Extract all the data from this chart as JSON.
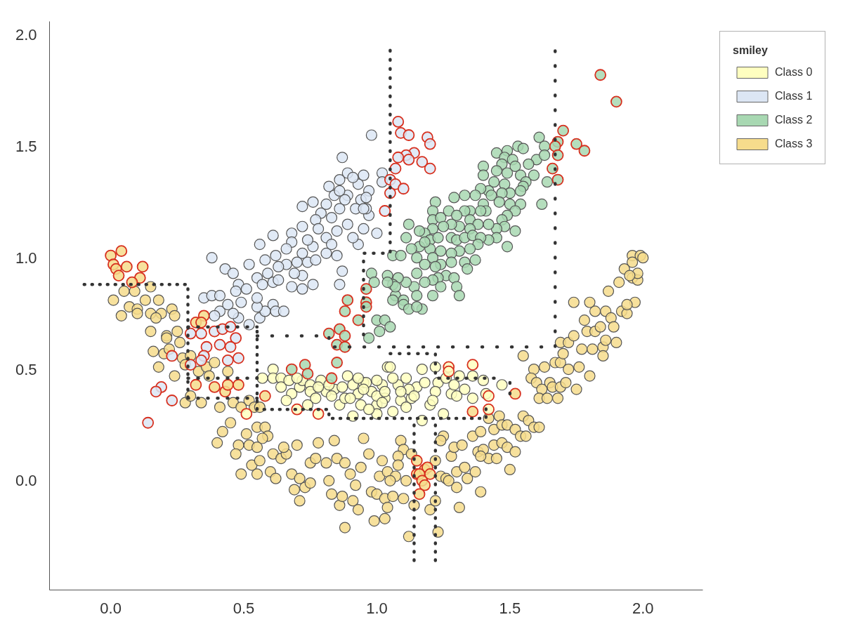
{
  "chart_data": {
    "type": "scatter",
    "xlim": [
      -0.23,
      2.225
    ],
    "ylim": [
      -0.49,
      2.06
    ],
    "xticks": [
      {
        "value": 0,
        "label": "0.0"
      },
      0.5,
      {
        "value": 1,
        "label": "1.0"
      },
      1.5,
      {
        "value": 2,
        "label": "2.0"
      }
    ],
    "yticks": [
      {
        "value": 0,
        "label": "0.0"
      },
      0.5,
      {
        "value": 1,
        "label": "1.0"
      },
      1.5,
      {
        "value": 2,
        "label": "2.0"
      }
    ],
    "legend": "top right",
    "legend_title": "smiley",
    "marker": "circle",
    "series": [
      {
        "name": "Class 0",
        "color": "#ffffc0",
        "x": [
          0.61,
          0.61,
          0.57,
          0.64,
          0.64,
          0.67,
          0.68,
          0.66,
          0.71,
          0.72,
          0.75,
          0.75,
          0.79,
          0.81,
          0.84,
          0.86,
          0.89,
          0.91,
          0.93,
          0.94,
          0.91,
          0.88,
          0.95,
          0.98,
          1.0,
          1.02,
          1.04,
          1.03,
          1.0,
          0.77,
          0.74,
          1.05,
          0.96,
          1.0,
          0.97,
          1.03,
          1.06,
          1.08,
          1.11,
          1.13,
          1.17,
          1.17,
          1.22,
          1.15,
          1.2,
          1.25,
          1.23,
          1.28,
          1.31,
          1.33,
          1.36,
          1.36,
          1.4,
          1.41,
          1.47,
          1.12,
          1.09,
          0.82,
          0.87,
          0.95,
          1.0,
          1.06,
          1.09,
          1.14,
          1.18,
          1.22,
          1.26,
          1.3,
          0.78,
          0.83,
          0.9,
          1.02,
          1.11,
          1.21,
          1.29,
          0.7,
          0.93
        ],
        "values": [
          0.5,
          0.46,
          0.46,
          0.46,
          0.42,
          0.45,
          0.39,
          0.36,
          0.42,
          0.45,
          0.43,
          0.4,
          0.45,
          0.4,
          0.41,
          0.34,
          0.47,
          0.43,
          0.39,
          0.34,
          0.29,
          0.37,
          0.44,
          0.4,
          0.34,
          0.43,
          0.51,
          0.37,
          0.3,
          0.37,
          0.34,
          0.51,
          0.44,
          0.38,
          0.32,
          0.4,
          0.31,
          0.43,
          0.46,
          0.37,
          0.27,
          0.5,
          0.51,
          0.42,
          0.34,
          0.3,
          0.44,
          0.39,
          0.47,
          0.41,
          0.47,
          0.37,
          0.45,
          0.39,
          0.43,
          0.41,
          0.36,
          0.43,
          0.42,
          0.41,
          0.45,
          0.46,
          0.4,
          0.38,
          0.44,
          0.4,
          0.46,
          0.38,
          0.42,
          0.38,
          0.37,
          0.35,
          0.33,
          0.36,
          0.43,
          0.46,
          0.46
        ]
      },
      {
        "name": "Class 1",
        "color": "#dce6f4",
        "x": [
          0.98,
          0.87,
          0.89,
          0.95,
          0.82,
          0.72,
          0.76,
          0.79,
          0.86,
          0.94,
          0.97,
          1.0,
          0.93,
          0.87,
          0.86,
          0.76,
          0.72,
          0.68,
          0.61,
          0.56,
          0.62,
          0.66,
          0.52,
          0.43,
          0.46,
          0.38,
          0.48,
          0.55,
          0.59,
          0.63,
          0.72,
          0.76,
          0.81,
          0.85,
          0.89,
          0.92,
          0.89,
          0.84,
          0.81,
          0.77,
          0.72,
          0.68,
          0.74,
          0.81,
          0.85,
          0.91,
          0.95,
          0.96,
          0.93,
          0.91,
          0.86,
          0.35,
          0.38,
          0.41,
          0.41,
          0.39,
          0.44,
          0.47,
          0.49,
          0.48,
          0.52,
          0.56,
          0.58,
          0.55,
          0.61,
          0.62,
          0.65,
          0.57,
          0.61,
          0.68,
          0.72,
          0.51,
          0.55,
          0.46,
          0.58,
          0.66,
          0.74,
          0.69,
          0.63,
          0.78,
          0.83,
          0.88,
          0.86,
          1.02,
          1.02,
          0.97,
          0.96,
          0.95,
          0.83,
          0.77,
          0.7
        ],
        "values": [
          1.55,
          1.45,
          1.38,
          1.37,
          1.32,
          1.23,
          1.25,
          1.2,
          1.22,
          1.26,
          1.19,
          1.11,
          1.06,
          0.94,
          0.88,
          0.88,
          0.92,
          1.11,
          1.1,
          1.06,
          1.01,
          0.97,
          0.97,
          0.95,
          0.93,
          1.0,
          0.88,
          0.91,
          0.93,
          0.96,
          1.02,
          1.05,
          1.09,
          1.12,
          1.15,
          1.22,
          1.28,
          1.28,
          1.24,
          1.17,
          1.14,
          1.07,
          1.08,
          1.02,
          1.01,
          1.09,
          1.13,
          1.22,
          1.33,
          1.36,
          1.3,
          0.82,
          0.83,
          0.83,
          0.76,
          0.74,
          0.79,
          0.85,
          0.8,
          0.73,
          0.7,
          0.73,
          0.76,
          0.78,
          0.79,
          0.76,
          0.76,
          0.88,
          0.89,
          0.87,
          0.86,
          0.86,
          0.82,
          0.75,
          0.99,
          1.04,
          0.98,
          0.93,
          0.9,
          1.13,
          1.18,
          1.26,
          1.35,
          1.38,
          1.34,
          1.3,
          1.27,
          1.22,
          1.06,
          0.99,
          0.98
        ]
      },
      {
        "name": "Class 2",
        "color": "#a8d8b2",
        "x": [
          1.45,
          1.49,
          1.53,
          1.55,
          1.61,
          1.63,
          1.6,
          1.63,
          1.57,
          1.59,
          1.64,
          1.62,
          1.48,
          1.51,
          1.52,
          1.47,
          1.49,
          1.54,
          1.56,
          1.55,
          1.4,
          1.4,
          1.45,
          1.44,
          1.48,
          1.5,
          1.54,
          1.47,
          1.42,
          1.39,
          1.37,
          1.4,
          1.43,
          1.46,
          1.5,
          1.54,
          1.52,
          1.49,
          1.47,
          1.52,
          1.48,
          1.45,
          1.45,
          1.49,
          1.42,
          1.41,
          1.39,
          1.35,
          1.33,
          1.29,
          1.33,
          1.22,
          1.21,
          1.21,
          1.24,
          1.27,
          1.3,
          1.35,
          1.38,
          1.42,
          1.35,
          1.31,
          1.28,
          1.25,
          1.21,
          1.18,
          1.2,
          1.23,
          1.28,
          1.3,
          1.33,
          1.36,
          1.39,
          1.38,
          1.35,
          1.31,
          1.28,
          1.24,
          1.2,
          1.16,
          1.13,
          1.11,
          1.12,
          1.16,
          1.18,
          1.21,
          1.24,
          1.28,
          1.33,
          1.37,
          1.15,
          1.18,
          1.22,
          1.26,
          1.29,
          1.3,
          1.31,
          1.23,
          1.21,
          1.18,
          1.15,
          1.14,
          1.11,
          1.08,
          1.04,
          1.06,
          1.07,
          1.1,
          1.06,
          1.09,
          0.98,
          0.99,
          1.07,
          1.06,
          1.1,
          1.12,
          1.17,
          1.15,
          1.0,
          1.03,
          1.05,
          1.01,
          0.97,
          1.34,
          1.15,
          1.21,
          1.24,
          1.04
        ],
        "values": [
          1.47,
          1.48,
          1.5,
          1.49,
          1.54,
          1.5,
          1.44,
          1.46,
          1.42,
          1.37,
          1.34,
          1.24,
          1.45,
          1.44,
          1.41,
          1.42,
          1.38,
          1.37,
          1.34,
          1.32,
          1.41,
          1.37,
          1.39,
          1.34,
          1.33,
          1.29,
          1.3,
          1.29,
          1.3,
          1.31,
          1.28,
          1.24,
          1.28,
          1.25,
          1.24,
          1.24,
          1.21,
          1.19,
          1.17,
          1.12,
          1.14,
          1.13,
          1.09,
          1.05,
          1.08,
          1.21,
          1.21,
          1.21,
          1.21,
          1.27,
          1.28,
          1.25,
          1.21,
          1.17,
          1.18,
          1.21,
          1.19,
          1.17,
          1.15,
          1.15,
          1.13,
          1.14,
          1.15,
          1.14,
          1.13,
          1.11,
          1.08,
          1.09,
          1.09,
          1.08,
          1.09,
          1.1,
          1.09,
          1.06,
          1.04,
          1.03,
          1.02,
          1.03,
          1.04,
          1.05,
          1.04,
          1.09,
          1.15,
          1.12,
          1.07,
          1.0,
          0.97,
          0.98,
          0.98,
          0.99,
          1.0,
          0.97,
          0.96,
          0.92,
          0.91,
          0.87,
          0.83,
          0.91,
          0.9,
          0.89,
          0.93,
          0.87,
          0.89,
          0.91,
          0.92,
          0.88,
          0.83,
          0.81,
          1.01,
          1.01,
          0.93,
          0.89,
          0.87,
          0.81,
          0.79,
          0.77,
          0.77,
          0.78,
          0.72,
          0.72,
          0.69,
          0.67,
          0.64,
          0.95,
          0.83,
          0.83,
          0.87,
          0.89
        ]
      },
      {
        "name": "Class 3",
        "color": "#f6dc8c",
        "x": [
          0.01,
          0.04,
          0.05,
          0.09,
          0.07,
          0.1,
          0.1,
          0.13,
          0.15,
          0.18,
          0.15,
          0.19,
          0.17,
          0.23,
          0.24,
          0.15,
          0.21,
          0.21,
          0.25,
          0.26,
          0.16,
          0.2,
          0.22,
          0.18,
          0.24,
          0.27,
          0.28,
          0.3,
          0.33,
          0.36,
          0.37,
          0.39,
          0.44,
          0.28,
          0.3,
          0.34,
          0.41,
          0.46,
          0.52,
          0.54,
          0.49,
          0.56,
          0.45,
          0.42,
          0.4,
          0.51,
          0.55,
          0.58,
          0.59,
          0.57,
          0.48,
          0.47,
          0.52,
          0.55,
          0.53,
          0.56,
          0.49,
          0.55,
          0.6,
          0.62,
          0.61,
          0.64,
          0.66,
          0.65,
          0.7,
          0.68,
          0.71,
          0.69,
          0.73,
          0.71,
          0.75,
          0.75,
          0.77,
          0.81,
          0.78,
          0.84,
          0.85,
          0.88,
          0.82,
          0.83,
          0.86,
          0.88,
          0.87,
          0.9,
          0.92,
          0.91,
          0.93,
          0.94,
          0.95,
          0.97,
          1.02,
          1.01,
          0.98,
          1.0,
          0.99,
          1.03,
          1.03,
          1.04,
          1.07,
          1.05,
          1.04,
          1.06,
          1.1,
          1.09,
          1.1,
          1.08,
          1.08,
          1.13,
          1.11,
          1.14,
          1.12,
          1.2,
          1.22,
          1.23,
          1.25,
          1.24,
          1.22,
          1.24,
          1.26,
          1.27,
          1.3,
          1.31,
          1.28,
          1.29,
          1.32,
          1.3,
          1.33,
          1.34,
          1.37,
          1.39,
          1.36,
          1.38,
          1.4,
          1.42,
          1.39,
          1.44,
          1.45,
          1.47,
          1.49,
          1.52,
          1.5,
          1.39,
          1.44,
          1.46,
          1.47,
          1.49,
          1.52,
          1.54,
          1.56,
          1.55,
          1.57,
          1.59,
          1.61,
          1.42,
          1.55,
          1.59,
          1.58,
          1.6,
          1.62,
          1.61,
          1.64,
          1.68,
          1.63,
          1.65,
          1.66,
          1.69,
          1.71,
          1.75,
          1.67,
          1.69,
          1.7,
          1.72,
          1.76,
          1.8,
          1.69,
          1.72,
          1.74,
          1.78,
          1.77,
          1.79,
          1.81,
          1.82,
          1.84,
          1.85,
          1.85,
          1.86,
          1.9,
          1.82,
          1.86,
          1.88,
          1.89,
          1.74,
          1.8,
          1.87,
          1.91,
          1.92,
          1.94,
          1.97,
          1.94,
          1.96,
          1.98,
          1.96,
          1.99,
          2.0,
          1.96,
          1.93,
          1.98,
          1.95
        ],
        "values": [
          0.81,
          0.74,
          0.85,
          0.85,
          0.78,
          0.77,
          0.75,
          0.81,
          0.87,
          0.81,
          0.75,
          0.75,
          0.73,
          0.77,
          0.74,
          0.67,
          0.65,
          0.64,
          0.67,
          0.62,
          0.58,
          0.57,
          0.59,
          0.51,
          0.47,
          0.55,
          0.52,
          0.56,
          0.49,
          0.51,
          0.47,
          0.53,
          0.49,
          0.35,
          0.38,
          0.35,
          0.33,
          0.35,
          0.36,
          0.33,
          0.33,
          0.33,
          0.26,
          0.22,
          0.17,
          0.21,
          0.24,
          0.24,
          0.2,
          0.19,
          0.16,
          0.12,
          0.16,
          0.15,
          0.07,
          0.09,
          0.03,
          0.03,
          0.04,
          0.01,
          0.12,
          0.1,
          0.12,
          0.15,
          0.16,
          0.03,
          0.01,
          -0.04,
          -0.03,
          -0.09,
          -0.01,
          0.08,
          0.1,
          0.08,
          0.17,
          0.18,
          0.1,
          0.08,
          0.0,
          -0.06,
          -0.11,
          -0.21,
          -0.07,
          0.03,
          -0.02,
          -0.09,
          -0.13,
          0.06,
          0.19,
          0.12,
          0.09,
          0.02,
          -0.05,
          -0.06,
          -0.18,
          -0.17,
          -0.08,
          0.04,
          0.02,
          0.0,
          -0.12,
          -0.07,
          -0.08,
          0.18,
          0.14,
          0.11,
          0.07,
          0.12,
          0.0,
          -0.11,
          -0.25,
          -0.13,
          -0.09,
          -0.23,
          0.2,
          0.18,
          0.09,
          0.02,
          0.01,
          0.0,
          -0.03,
          -0.12,
          0.11,
          0.15,
          0.16,
          0.04,
          0.06,
          0.01,
          0.04,
          -0.05,
          0.2,
          0.13,
          0.14,
          0.1,
          0.11,
          0.16,
          0.1,
          0.17,
          0.15,
          0.13,
          0.05,
          0.22,
          0.23,
          0.29,
          0.25,
          0.25,
          0.23,
          0.2,
          0.2,
          0.29,
          0.27,
          0.24,
          0.24,
          0.28,
          0.56,
          0.5,
          0.46,
          0.44,
          0.41,
          0.37,
          0.37,
          0.37,
          0.51,
          0.44,
          0.42,
          0.42,
          0.44,
          0.41,
          0.53,
          0.53,
          0.57,
          0.5,
          0.51,
          0.47,
          0.62,
          0.62,
          0.65,
          0.72,
          0.59,
          0.67,
          0.59,
          0.67,
          0.69,
          0.6,
          0.56,
          0.63,
          0.62,
          0.76,
          0.76,
          0.73,
          0.69,
          0.8,
          0.8,
          0.85,
          0.89,
          0.76,
          0.75,
          0.8,
          0.79,
          0.91,
          0.9,
          1.01,
          1.01,
          1.0,
          0.98,
          0.95,
          0.93,
          0.92
        ]
      },
      {
        "color": "#d7301f",
        "x": [
          1.08,
          1.09,
          1.12,
          1.19,
          1.2,
          1.14,
          1.11,
          1.08,
          1.12,
          1.17,
          1.2,
          1.07,
          1.05,
          1.07,
          1.1,
          1.05,
          1.03,
          0.3,
          0.34,
          0.39,
          0.42,
          0.45,
          0.47,
          0.36,
          0.41,
          0.45,
          0.35,
          0.34,
          0.44,
          0.48,
          0.23,
          0.3,
          0.19,
          0.17,
          0.23,
          0.14,
          1.84,
          1.9,
          1.7,
          1.68,
          1.67,
          1.75,
          1.78,
          1.68,
          1.66,
          1.68,
          0.96,
          0.96,
          0.89,
          0.88,
          0.93,
          0.96,
          0.82,
          0.86,
          0.88,
          0.85,
          0.88,
          0.85,
          0.83,
          0.68,
          0.73,
          0.74,
          0.0,
          0.04,
          0.01,
          0.02,
          0.06,
          0.12,
          0.03,
          0.11,
          0.08,
          0.35,
          0.32,
          0.34,
          0.32,
          0.39,
          0.43,
          0.44,
          0.48,
          0.58,
          1.15,
          1.15,
          1.18,
          1.19,
          1.2,
          1.16,
          1.17,
          1.18,
          1.16,
          1.52,
          1.36,
          0.51,
          0.7,
          0.78,
          1.36,
          1.27,
          1.27,
          1.42,
          1.42
        ],
        "values": [
          1.61,
          1.56,
          1.55,
          1.54,
          1.51,
          1.47,
          1.46,
          1.45,
          1.44,
          1.43,
          1.4,
          1.4,
          1.35,
          1.33,
          1.31,
          1.29,
          1.21,
          0.66,
          0.66,
          0.67,
          0.68,
          0.69,
          0.64,
          0.6,
          0.61,
          0.6,
          0.56,
          0.54,
          0.54,
          0.55,
          0.56,
          0.52,
          0.42,
          0.4,
          0.36,
          0.26,
          1.82,
          1.7,
          1.57,
          1.52,
          1.5,
          1.51,
          1.48,
          1.46,
          1.4,
          1.35,
          0.86,
          0.8,
          0.81,
          0.76,
          0.72,
          0.78,
          0.66,
          0.68,
          0.65,
          0.61,
          0.6,
          0.53,
          0.46,
          0.5,
          0.52,
          0.48,
          1.01,
          1.03,
          0.97,
          0.95,
          0.96,
          0.96,
          0.92,
          0.91,
          0.89,
          0.74,
          0.71,
          0.71,
          0.43,
          0.42,
          0.4,
          0.43,
          0.43,
          0.38,
          0.09,
          0.03,
          0.05,
          0.06,
          0.03,
          0.03,
          0.0,
          -0.02,
          -0.06,
          0.39,
          0.31,
          0.3,
          0.32,
          0.3,
          0.52,
          0.51,
          0.49,
          0.38,
          0.32
        ],
        "colors": [
          "#dce6f4",
          "#dce6f4",
          "#dce6f4",
          "#dce6f4",
          "#dce6f4",
          "#dce6f4",
          "#dce6f4",
          "#dce6f4",
          "#dce6f4",
          "#dce6f4",
          "#dce6f4",
          "#dce6f4",
          "#dce6f4",
          "#dce6f4",
          "#dce6f4",
          "#dce6f4",
          "#dce6f4",
          "#dce6f4",
          "#dce6f4",
          "#dce6f4",
          "#dce6f4",
          "#dce6f4",
          "#dce6f4",
          "#dce6f4",
          "#dce6f4",
          "#dce6f4",
          "#dce6f4",
          "#dce6f4",
          "#dce6f4",
          "#dce6f4",
          "#dce6f4",
          "#dce6f4",
          "#dce6f4",
          "#dce6f4",
          "#dce6f4",
          "#dce6f4",
          "#a8d8b2",
          "#a8d8b2",
          "#a8d8b2",
          "#a8d8b2",
          "#a8d8b2",
          "#a8d8b2",
          "#a8d8b2",
          "#a8d8b2",
          "#a8d8b2",
          "#a8d8b2",
          "#a8d8b2",
          "#a8d8b2",
          "#a8d8b2",
          "#a8d8b2",
          "#a8d8b2",
          "#a8d8b2",
          "#a8d8b2",
          "#a8d8b2",
          "#a8d8b2",
          "#a8d8b2",
          "#a8d8b2",
          "#a8d8b2",
          "#a8d8b2",
          "#a8d8b2",
          "#a8d8b2",
          "#a8d8b2",
          "#f6dc8c",
          "#f6dc8c",
          "#f6dc8c",
          "#f6dc8c",
          "#f6dc8c",
          "#f6dc8c",
          "#f6dc8c",
          "#f6dc8c",
          "#f6dc8c",
          "#f6dc8c",
          "#f6dc8c",
          "#f6dc8c",
          "#f6dc8c",
          "#f6dc8c",
          "#f6dc8c",
          "#f6dc8c",
          "#f6dc8c",
          "#f6dc8c",
          "#f6dc8c",
          "#f6dc8c",
          "#f6dc8c",
          "#f6dc8c",
          "#f6dc8c",
          "#f6dc8c",
          "#f6dc8c",
          "#f6dc8c",
          "#f6dc8c",
          "#f6dc8c",
          "#f6dc8c",
          "#ffffc0",
          "#ffffc0",
          "#ffffc0",
          "#ffffc0",
          "#ffffc0",
          "#ffffc0",
          "#ffffc0",
          "#ffffc0"
        ]
      },
      {
        "type": "line",
        "line_style": "dotted",
        "marker": "none",
        "color": "#333333",
        "x": [
          -0.1,
          0.29,
          0.29
        ],
        "values": [
          0.88,
          0.88,
          0.37
        ]
      },
      {
        "type": "line",
        "line_style": "dotted",
        "marker": "none",
        "color": "#333333",
        "x": [
          0.29,
          0.55
        ],
        "values": [
          0.69,
          0.69
        ]
      },
      {
        "type": "line",
        "line_style": "dotted",
        "marker": "none",
        "color": "#333333",
        "x": [
          0.55,
          0.55,
          0.82,
          0.82,
          1.41,
          1.41
        ],
        "values": [
          0.67,
          0.32,
          0.32,
          0.28,
          0.28,
          0.35
        ]
      },
      {
        "type": "line",
        "line_style": "dotted",
        "marker": "none",
        "color": "#333333",
        "x": [
          0.55,
          0.82,
          0.82,
          1.67,
          1.67
        ],
        "values": [
          0.65,
          0.65,
          0.6,
          0.6,
          1.93
        ]
      },
      {
        "type": "line",
        "line_style": "dotted",
        "marker": "none",
        "color": "#333333",
        "x": [
          1.05,
          1.05,
          0.95,
          0.95
        ],
        "values": [
          1.93,
          1.02,
          1.02,
          0.62
        ]
      },
      {
        "type": "line",
        "line_style": "dotted",
        "marker": "none",
        "color": "#333333",
        "x": [
          0.29,
          0.55
        ],
        "values": [
          0.46,
          0.46
        ]
      },
      {
        "type": "line",
        "line_style": "dotted",
        "marker": "none",
        "color": "#333333",
        "x": [
          0.29,
          0.55
        ],
        "values": [
          0.37,
          0.37
        ]
      },
      {
        "type": "line",
        "line_style": "dotted",
        "marker": "none",
        "color": "#333333",
        "x": [
          1.05,
          1.22,
          1.22,
          1.47
        ],
        "values": [
          0.57,
          0.57,
          0.46,
          0.46
        ]
      },
      {
        "type": "line",
        "line_style": "dotted",
        "marker": "none",
        "color": "#333333",
        "x": [
          1.5,
          1.5
        ],
        "values": [
          0.44,
          0.39
        ]
      },
      {
        "type": "line",
        "line_style": "dotted",
        "marker": "none",
        "color": "#333333",
        "x": [
          1.14,
          1.14
        ],
        "values": [
          0.25,
          -0.36
        ]
      },
      {
        "type": "line",
        "line_style": "dotted",
        "marker": "none",
        "color": "#333333",
        "x": [
          1.22,
          1.22
        ],
        "values": [
          0.25,
          -0.36
        ]
      }
    ]
  }
}
